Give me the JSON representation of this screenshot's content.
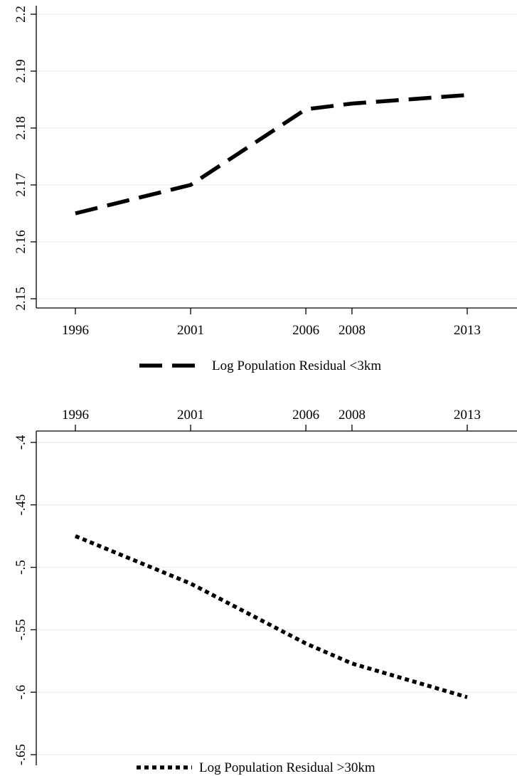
{
  "chart_data": [
    {
      "type": "line",
      "x": [
        1996,
        2001,
        2006,
        2008,
        2013
      ],
      "x_tick_labels": [
        "1996",
        "2001",
        "2006",
        "2008",
        "2013"
      ],
      "x_axis_position": "bottom",
      "series": [
        {
          "name": "Log Population Residual <3km",
          "values": [
            2.165,
            2.17,
            2.1833,
            2.1843,
            2.1858
          ],
          "line_style": "dashed",
          "color": "#000000"
        }
      ],
      "ylim": [
        2.15,
        2.2
      ],
      "y_ticks": [
        2.15,
        2.16,
        2.17,
        2.18,
        2.19,
        2.2
      ],
      "y_tick_labels": [
        "2.15",
        "2.16",
        "2.17",
        "2.18",
        "2.19",
        "2.2"
      ],
      "grid": true,
      "legend_position": "bottom-center",
      "title": "",
      "xlabel": "",
      "ylabel": ""
    },
    {
      "type": "line",
      "x": [
        1996,
        2001,
        2006,
        2008,
        2013
      ],
      "x_tick_labels": [
        "1996",
        "2001",
        "2006",
        "2008",
        "2013"
      ],
      "x_axis_position": "top",
      "series": [
        {
          "name": "Log Population Residual >30km",
          "values": [
            -0.475,
            -0.513,
            -0.561,
            -0.577,
            -0.604
          ],
          "line_style": "dotted",
          "color": "#000000"
        }
      ],
      "ylim": [
        -0.65,
        -0.4
      ],
      "y_ticks": [
        -0.65,
        -0.6,
        -0.55,
        -0.5,
        -0.45,
        -0.4
      ],
      "y_tick_labels": [
        "-.65",
        "-.6",
        "-.55",
        "-.5",
        "-.45",
        "-.4"
      ],
      "grid": true,
      "legend_position": "bottom-center",
      "title": "",
      "xlabel": "",
      "ylabel": ""
    }
  ]
}
